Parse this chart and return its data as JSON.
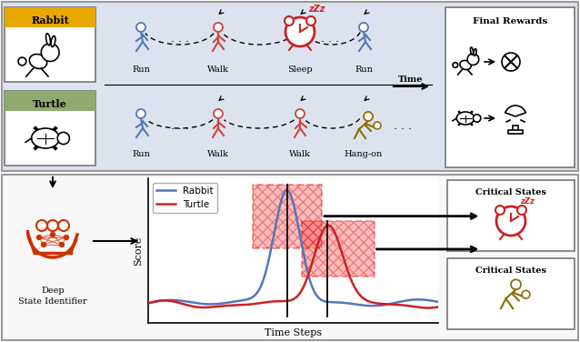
{
  "fig_width": 6.38,
  "fig_height": 3.76,
  "top_panel_bg": "#dce3ee",
  "rabbit_label_color": "#e8a800",
  "turtle_label_color": "#8faa6e",
  "rabbit_line_color": "#5577bb",
  "turtle_line_color": "#cc2222",
  "deep_id_color": "#cc3300",
  "plot_ylabel": "Score",
  "plot_xlabel": "Time Steps",
  "legend_rabbit": "Rabbit",
  "legend_turtle": "Turtle"
}
